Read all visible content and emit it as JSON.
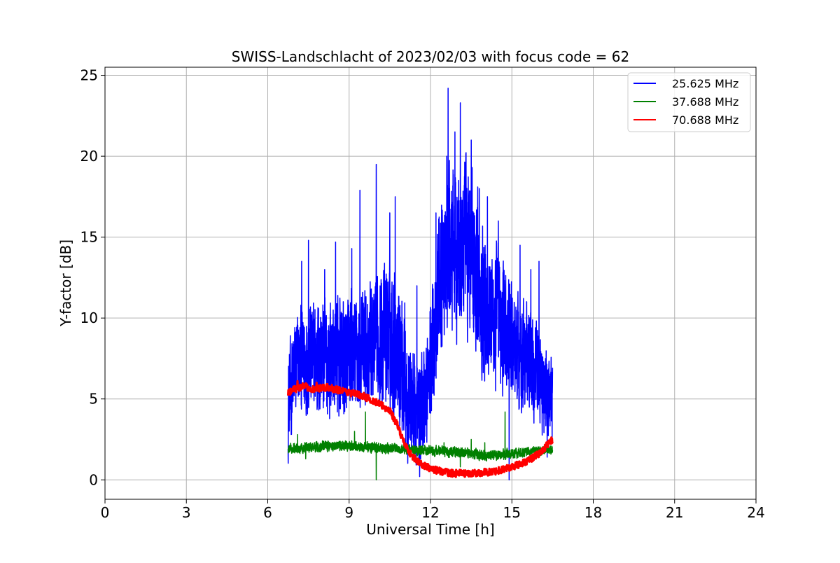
{
  "chart_data": {
    "type": "line",
    "title": "SWISS-Landschlacht of 2023/02/03 with focus code = 62",
    "xlabel": "Universal Time [h]",
    "ylabel": "Y-factor [dB]",
    "xlim": [
      0,
      24
    ],
    "ylim": [
      -1.2,
      25.5
    ],
    "xticks": [
      0,
      3,
      6,
      9,
      12,
      15,
      18,
      21,
      24
    ],
    "yticks": [
      0,
      5,
      10,
      15,
      20,
      25
    ],
    "grid": true,
    "legend_position": "top-right",
    "series": [
      {
        "name": "25.625 MHz",
        "color": "#0000ff",
        "style": "noisy",
        "x_range": [
          6.75,
          16.5
        ],
        "trend": [
          [
            6.75,
            4.5
          ],
          [
            7.0,
            7.0
          ],
          [
            7.5,
            7.5
          ],
          [
            8.0,
            7.5
          ],
          [
            8.5,
            7.5
          ],
          [
            9.0,
            7.5
          ],
          [
            9.5,
            8.0
          ],
          [
            10.0,
            8.5
          ],
          [
            10.5,
            9.0
          ],
          [
            10.9,
            8.0
          ],
          [
            11.2,
            5.0
          ],
          [
            11.5,
            4.0
          ],
          [
            11.8,
            5.0
          ],
          [
            12.0,
            7.0
          ],
          [
            12.3,
            12.0
          ],
          [
            12.7,
            14.0
          ],
          [
            13.0,
            14.0
          ],
          [
            13.5,
            14.5
          ],
          [
            14.0,
            11.0
          ],
          [
            14.5,
            10.0
          ],
          [
            15.0,
            8.5
          ],
          [
            15.5,
            7.5
          ],
          [
            16.0,
            6.5
          ],
          [
            16.5,
            4.5
          ]
        ],
        "amplitude": [
          [
            6.75,
            3.0
          ],
          [
            8.0,
            3.5
          ],
          [
            9.5,
            3.5
          ],
          [
            11.0,
            4.5
          ],
          [
            11.5,
            3.0
          ],
          [
            12.5,
            4.5
          ],
          [
            13.5,
            5.0
          ],
          [
            15.0,
            3.5
          ],
          [
            16.5,
            2.5
          ]
        ],
        "spikes": [
          [
            7.25,
            13.5
          ],
          [
            7.5,
            14.8
          ],
          [
            8.1,
            13.0
          ],
          [
            8.5,
            14.7
          ],
          [
            9.1,
            14.3
          ],
          [
            9.4,
            17.9
          ],
          [
            10.0,
            19.5
          ],
          [
            10.5,
            16.5
          ],
          [
            10.7,
            17.5
          ],
          [
            11.5,
            12.0
          ],
          [
            12.2,
            16.5
          ],
          [
            12.6,
            20.0
          ],
          [
            12.65,
            24.2
          ],
          [
            12.9,
            21.5
          ],
          [
            13.1,
            23.3
          ],
          [
            13.5,
            21.0
          ],
          [
            13.8,
            18.0
          ],
          [
            14.1,
            17.5
          ],
          [
            14.5,
            16.0
          ],
          [
            15.3,
            14.5
          ],
          [
            15.7,
            13.0
          ],
          [
            16.0,
            13.5
          ],
          [
            16.3,
            8.5
          ]
        ],
        "dips": [
          [
            11.4,
            1.2
          ],
          [
            11.6,
            0.2
          ],
          [
            14.9,
            0.0
          ],
          [
            14.4,
            5.5
          ],
          [
            16.3,
            1.4
          ]
        ]
      },
      {
        "name": "37.688 MHz",
        "color": "#008000",
        "style": "noisy",
        "x_range": [
          6.75,
          16.5
        ],
        "trend": [
          [
            6.75,
            1.9
          ],
          [
            8.0,
            2.1
          ],
          [
            9.0,
            2.1
          ],
          [
            10.0,
            2.0
          ],
          [
            11.0,
            1.9
          ],
          [
            12.0,
            1.8
          ],
          [
            13.0,
            1.7
          ],
          [
            14.0,
            1.5
          ],
          [
            15.0,
            1.6
          ],
          [
            16.0,
            1.8
          ],
          [
            16.5,
            1.9
          ]
        ],
        "amplitude": [
          [
            6.75,
            0.3
          ],
          [
            16.5,
            0.3
          ]
        ],
        "spikes": [
          [
            7.1,
            2.8
          ],
          [
            9.2,
            3.0
          ],
          [
            9.6,
            4.2
          ],
          [
            12.5,
            2.3
          ],
          [
            13.5,
            2.5
          ],
          [
            14.0,
            2.3
          ],
          [
            14.75,
            4.2
          ]
        ],
        "dips": [
          [
            10.0,
            0.0
          ],
          [
            7.4,
            1.3
          ],
          [
            13.1,
            0.8
          ]
        ]
      },
      {
        "name": "70.688 MHz",
        "color": "#ff0000",
        "style": "smooth",
        "x_range": [
          6.75,
          16.5
        ],
        "trend": [
          [
            6.75,
            5.4
          ],
          [
            7.0,
            5.6
          ],
          [
            7.3,
            5.8
          ],
          [
            7.7,
            5.6
          ],
          [
            8.2,
            5.7
          ],
          [
            8.5,
            5.6
          ],
          [
            9.0,
            5.4
          ],
          [
            9.5,
            5.2
          ],
          [
            10.0,
            4.8
          ],
          [
            10.5,
            4.3
          ],
          [
            10.8,
            3.3
          ],
          [
            11.0,
            2.4
          ],
          [
            11.3,
            1.5
          ],
          [
            11.7,
            0.9
          ],
          [
            12.2,
            0.6
          ],
          [
            12.8,
            0.4
          ],
          [
            13.5,
            0.4
          ],
          [
            14.3,
            0.5
          ],
          [
            15.0,
            0.8
          ],
          [
            15.5,
            1.1
          ],
          [
            16.0,
            1.6
          ],
          [
            16.5,
            2.5
          ]
        ],
        "amplitude": [
          [
            6.75,
            0.22
          ],
          [
            16.5,
            0.22
          ]
        ],
        "spikes": [
          [
            7.1,
            6.1
          ],
          [
            7.8,
            6.0
          ]
        ],
        "dips": []
      }
    ]
  }
}
